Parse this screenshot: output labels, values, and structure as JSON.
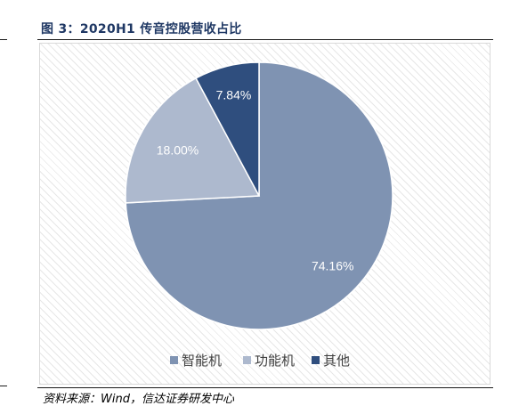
{
  "figure": {
    "title": "图 3：2020H1 传音控股营收占比",
    "source": "资料来源：Wind，信达证券研发中心"
  },
  "chart_data": {
    "type": "pie",
    "title": "",
    "slices": [
      {
        "name": "智能机",
        "value": 74.16,
        "label": "74.16%",
        "color": "#7f93b2"
      },
      {
        "name": "功能机",
        "value": 18.0,
        "label": "18.00%",
        "color": "#adb9ce"
      },
      {
        "name": "其他",
        "value": 7.84,
        "label": "7.84%",
        "color": "#2f4e7e"
      }
    ],
    "start": "12 o'clock, clockwise",
    "legend_position": "bottom"
  }
}
